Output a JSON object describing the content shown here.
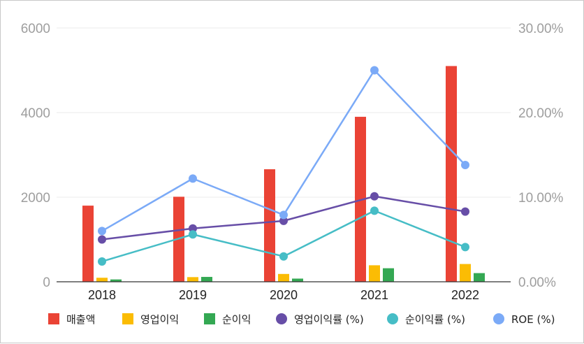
{
  "chart_data": {
    "type": "bar",
    "title": "",
    "xlabel": "",
    "ylabel": "",
    "categories": [
      "2018",
      "2019",
      "2020",
      "2021",
      "2022"
    ],
    "ylim": [
      0,
      6000
    ],
    "y2lim": [
      0,
      30
    ],
    "yticks": [
      "0",
      "2000",
      "4000",
      "6000"
    ],
    "y2ticks": [
      "0.00%",
      "10.00%",
      "20.00%",
      "30.00%"
    ],
    "grid": true,
    "legend_position": "bottom",
    "bar_series": [
      {
        "name": "매출액",
        "color": "#ea4335",
        "values": [
          1800,
          2010,
          2660,
          3900,
          5100
        ]
      },
      {
        "name": "영업이익",
        "color": "#fbbc04",
        "values": [
          95,
          110,
          185,
          390,
          420
        ]
      },
      {
        "name": "순이익",
        "color": "#34a853",
        "values": [
          55,
          115,
          75,
          320,
          205
        ]
      }
    ],
    "line_series": [
      {
        "name": "영업이익률 (%)",
        "color": "#674ea7",
        "axis": "right",
        "values": [
          5.0,
          6.3,
          7.2,
          10.1,
          8.3
        ]
      },
      {
        "name": "순이익률 (%)",
        "color": "#46bdc6",
        "axis": "right",
        "values": [
          2.4,
          5.6,
          3.0,
          8.4,
          4.1
        ]
      },
      {
        "name": "ROE (%)",
        "color": "#7baaf7",
        "axis": "right",
        "values": [
          6.0,
          12.2,
          7.9,
          25.0,
          13.8
        ]
      }
    ]
  }
}
